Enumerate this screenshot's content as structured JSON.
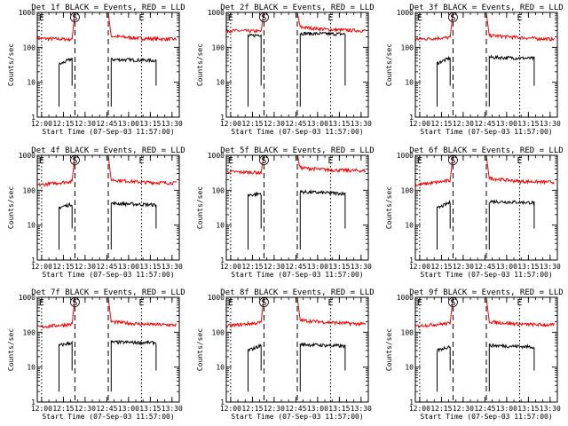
{
  "chart_data": [
    {
      "type": "line",
      "title": "Det 1f BLACK = Events, RED = LLD",
      "ylabel": "Counts/sec",
      "xlabel": "Start Time (07-Sep-03 11:57:00)",
      "xticks": [
        "12:00",
        "12:15",
        "12:30",
        "12:45",
        "13:00",
        "13:15",
        "13:30"
      ],
      "yticks": [
        "1",
        "10",
        "100",
        "1000"
      ],
      "ylim": [
        1,
        1000
      ],
      "xlim_min": [
        0,
        98
      ],
      "markers": [
        {
          "t": 3,
          "label": "E",
          "style": "dotted"
        },
        {
          "t": 26,
          "label": "S",
          "style": "dashed"
        },
        {
          "t": 49,
          "style": "dashed"
        },
        {
          "t": 72,
          "label": "E",
          "style": "dotted"
        }
      ],
      "series": [
        {
          "name": "LLD",
          "color": "#ff0000",
          "segments": [
            {
              "t": [
                0,
                24,
                26
              ],
              "y": [
                180,
                170,
                1000
              ]
            },
            {
              "t": [
                49,
                51,
                72,
                96
              ],
              "y": [
                1000,
                210,
                180,
                170
              ]
            }
          ]
        },
        {
          "name": "Events",
          "color": "#000000",
          "segments": [
            {
              "t": [
                15,
                24
              ],
              "y": [
                32,
                48
              ]
            },
            {
              "t": [
                51,
                82
              ],
              "y": [
                45,
                42
              ]
            }
          ]
        }
      ]
    },
    {
      "type": "line",
      "title": "Det 2f BLACK = Events, RED = LLD",
      "ylabel": "Counts/sec",
      "xlabel": "Start Time (07-Sep-03 11:57:00)",
      "xticks": [
        "12:00",
        "12:15",
        "12:30",
        "12:45",
        "13:00",
        "13:15",
        "13:30"
      ],
      "yticks": [
        "1",
        "10",
        "100",
        "1000"
      ],
      "ylim": [
        1,
        1000
      ],
      "xlim_min": [
        0,
        98
      ],
      "markers": [
        {
          "t": 3,
          "label": "E",
          "style": "dotted"
        },
        {
          "t": 26,
          "label": "S",
          "style": "dashed"
        },
        {
          "t": 49,
          "style": "dashed"
        },
        {
          "t": 72,
          "label": "E",
          "style": "dotted"
        }
      ],
      "series": [
        {
          "name": "LLD",
          "color": "#ff0000",
          "segments": [
            {
              "t": [
                0,
                24,
                26
              ],
              "y": [
                300,
                290,
                1000
              ]
            },
            {
              "t": [
                49,
                51,
                72,
                96
              ],
              "y": [
                1000,
                380,
                320,
                300
              ]
            }
          ]
        },
        {
          "name": "Events",
          "color": "#000000",
          "segments": [
            {
              "t": [
                15,
                24
              ],
              "y": [
                210,
                230
              ]
            },
            {
              "t": [
                51,
                82
              ],
              "y": [
                250,
                240
              ]
            }
          ]
        }
      ]
    },
    {
      "type": "line",
      "title": "Det 3f BLACK = Events, RED = LLD",
      "ylabel": "Counts/sec",
      "xlabel": "Start Time (07-Sep-03 11:57:00)",
      "xticks": [
        "12:00",
        "12:15",
        "12:30",
        "12:45",
        "13:00",
        "13:15",
        "13:30"
      ],
      "yticks": [
        "1",
        "10",
        "100",
        "1000"
      ],
      "ylim": [
        1,
        1000
      ],
      "xlim_min": [
        0,
        98
      ],
      "markers": [
        {
          "t": 3,
          "label": "E",
          "style": "dotted"
        },
        {
          "t": 26,
          "label": "S",
          "style": "dashed"
        },
        {
          "t": 49,
          "style": "dashed"
        },
        {
          "t": 72,
          "label": "E",
          "style": "dotted"
        }
      ],
      "series": [
        {
          "name": "LLD",
          "color": "#ff0000",
          "segments": [
            {
              "t": [
                0,
                24,
                26
              ],
              "y": [
                170,
                190,
                1000
              ]
            },
            {
              "t": [
                49,
                51,
                72,
                96
              ],
              "y": [
                1000,
                220,
                190,
                170
              ]
            }
          ]
        },
        {
          "name": "Events",
          "color": "#000000",
          "segments": [
            {
              "t": [
                15,
                24
              ],
              "y": [
                35,
                50
              ]
            },
            {
              "t": [
                51,
                82
              ],
              "y": [
                52,
                48
              ]
            }
          ]
        }
      ]
    },
    {
      "type": "line",
      "title": "Det 4f BLACK = Events, RED = LLD",
      "ylabel": "Counts/sec",
      "xlabel": "Start Time (07-Sep-03 11:57:00)",
      "xticks": [
        "12:00",
        "12:15",
        "12:30",
        "12:45",
        "13:00",
        "13:15",
        "13:30"
      ],
      "yticks": [
        "1",
        "10",
        "100",
        "1000"
      ],
      "ylim": [
        1,
        1000
      ],
      "xlim_min": [
        0,
        98
      ],
      "markers": [
        {
          "t": 3,
          "label": "E",
          "style": "dotted"
        },
        {
          "t": 26,
          "label": "S",
          "style": "dashed"
        },
        {
          "t": 49,
          "style": "dashed"
        },
        {
          "t": 72,
          "label": "E",
          "style": "dotted"
        }
      ],
      "series": [
        {
          "name": "LLD",
          "color": "#ff0000",
          "segments": [
            {
              "t": [
                0,
                24,
                26
              ],
              "y": [
                140,
                180,
                1000
              ]
            },
            {
              "t": [
                49,
                51,
                72,
                96
              ],
              "y": [
                1000,
                200,
                170,
                160
              ]
            }
          ]
        },
        {
          "name": "Events",
          "color": "#000000",
          "segments": [
            {
              "t": [
                15,
                24
              ],
              "y": [
                32,
                40
              ]
            },
            {
              "t": [
                51,
                82
              ],
              "y": [
                42,
                38
              ]
            }
          ]
        }
      ]
    },
    {
      "type": "line",
      "title": "Det 5f BLACK = Events, RED = LLD",
      "ylabel": "Counts/sec",
      "xlabel": "Start Time (07-Sep-03 11:57:00)",
      "xticks": [
        "12:00",
        "12:15",
        "12:30",
        "12:45",
        "13:00",
        "13:15",
        "13:30"
      ],
      "yticks": [
        "1",
        "10",
        "100",
        "1000"
      ],
      "ylim": [
        1,
        1000
      ],
      "xlim_min": [
        0,
        98
      ],
      "markers": [
        {
          "t": 3,
          "label": "E",
          "style": "dotted"
        },
        {
          "t": 26,
          "label": "S",
          "style": "dashed"
        },
        {
          "t": 49,
          "style": "dashed"
        },
        {
          "t": 72,
          "label": "E",
          "style": "dotted"
        }
      ],
      "series": [
        {
          "name": "LLD",
          "color": "#ff0000",
          "segments": [
            {
              "t": [
                0,
                24,
                26
              ],
              "y": [
                340,
                320,
                1000
              ]
            },
            {
              "t": [
                49,
                51,
                72,
                96
              ],
              "y": [
                1000,
                440,
                380,
                360
              ]
            }
          ]
        },
        {
          "name": "Events",
          "color": "#000000",
          "segments": [
            {
              "t": [
                15,
                24
              ],
              "y": [
                72,
                80
              ]
            },
            {
              "t": [
                51,
                82
              ],
              "y": [
                90,
                80
              ]
            }
          ]
        }
      ]
    },
    {
      "type": "line",
      "title": "Det 6f BLACK = Events, RED = LLD",
      "ylabel": "Counts/sec",
      "xlabel": "Start Time (07-Sep-03 11:57:00)",
      "xticks": [
        "12:00",
        "12:15",
        "12:30",
        "12:45",
        "13:00",
        "13:15",
        "13:30"
      ],
      "yticks": [
        "1",
        "10",
        "100",
        "1000"
      ],
      "ylim": [
        1,
        1000
      ],
      "xlim_min": [
        0,
        98
      ],
      "markers": [
        {
          "t": 3,
          "label": "E",
          "style": "dotted"
        },
        {
          "t": 26,
          "label": "S",
          "style": "dashed"
        },
        {
          "t": 49,
          "style": "dashed"
        },
        {
          "t": 72,
          "label": "E",
          "style": "dotted"
        }
      ],
      "series": [
        {
          "name": "LLD",
          "color": "#ff0000",
          "segments": [
            {
              "t": [
                0,
                24,
                26
              ],
              "y": [
                140,
                190,
                1000
              ]
            },
            {
              "t": [
                49,
                51,
                72,
                96
              ],
              "y": [
                1000,
                220,
                180,
                170
              ]
            }
          ]
        },
        {
          "name": "Events",
          "color": "#000000",
          "segments": [
            {
              "t": [
                15,
                24
              ],
              "y": [
                30,
                45
              ]
            },
            {
              "t": [
                51,
                82
              ],
              "y": [
                48,
                44
              ]
            }
          ]
        }
      ]
    },
    {
      "type": "line",
      "title": "Det 7f BLACK = Events, RED = LLD",
      "ylabel": "Counts/sec",
      "xlabel": "Start Time (07-Sep-03 11:57:00)",
      "xticks": [
        "12:00",
        "12:15",
        "12:30",
        "12:45",
        "13:00",
        "13:15",
        "13:30"
      ],
      "yticks": [
        "1",
        "10",
        "100",
        "1000"
      ],
      "ylim": [
        1,
        1000
      ],
      "xlim_min": [
        0,
        98
      ],
      "markers": [
        {
          "t": 3,
          "label": "E",
          "style": "dotted"
        },
        {
          "t": 26,
          "label": "S",
          "style": "dashed"
        },
        {
          "t": 49,
          "style": "dashed"
        },
        {
          "t": 72,
          "label": "E",
          "style": "dotted"
        }
      ],
      "series": [
        {
          "name": "LLD",
          "color": "#ff0000",
          "segments": [
            {
              "t": [
                0,
                24,
                26
              ],
              "y": [
                140,
                170,
                1000
              ]
            },
            {
              "t": [
                49,
                51,
                72,
                96
              ],
              "y": [
                1000,
                200,
                170,
                160
              ]
            }
          ]
        },
        {
          "name": "Events",
          "color": "#000000",
          "segments": [
            {
              "t": [
                15,
                24
              ],
              "y": [
                42,
                50
              ]
            },
            {
              "t": [
                51,
                82
              ],
              "y": [
                52,
                50
              ]
            }
          ]
        }
      ]
    },
    {
      "type": "line",
      "title": "Det 8f BLACK = Events, RED = LLD",
      "ylabel": "Counts/sec",
      "xlabel": "Start Time (07-Sep-03 11:57:00)",
      "xticks": [
        "12:00",
        "12:15",
        "12:30",
        "12:45",
        "13:00",
        "13:15",
        "13:30"
      ],
      "yticks": [
        "1",
        "10",
        "100",
        "1000"
      ],
      "ylim": [
        1,
        1000
      ],
      "xlim_min": [
        0,
        98
      ],
      "markers": [
        {
          "t": 3,
          "label": "E",
          "style": "dotted"
        },
        {
          "t": 26,
          "label": "S",
          "style": "dashed"
        },
        {
          "t": 49,
          "style": "dashed"
        },
        {
          "t": 72,
          "label": "E",
          "style": "dotted"
        }
      ],
      "series": [
        {
          "name": "LLD",
          "color": "#ff0000",
          "segments": [
            {
              "t": [
                0,
                24,
                26
              ],
              "y": [
                150,
                190,
                1000
              ]
            },
            {
              "t": [
                49,
                51,
                72,
                96
              ],
              "y": [
                1000,
                220,
                190,
                170
              ]
            }
          ]
        },
        {
          "name": "Events",
          "color": "#000000",
          "segments": [
            {
              "t": [
                15,
                24
              ],
              "y": [
                30,
                42
              ]
            },
            {
              "t": [
                51,
                82
              ],
              "y": [
                45,
                40
              ]
            }
          ]
        }
      ]
    },
    {
      "type": "line",
      "title": "Det 9f BLACK = Events, RED = LLD",
      "ylabel": "Counts/sec",
      "xlabel": "Start Time (07-Sep-03 11:57:00)",
      "xticks": [
        "12:00",
        "12:15",
        "12:30",
        "12:45",
        "13:00",
        "13:15",
        "13:30"
      ],
      "yticks": [
        "1",
        "10",
        "100",
        "1000"
      ],
      "ylim": [
        1,
        1000
      ],
      "xlim_min": [
        0,
        98
      ],
      "markers": [
        {
          "t": 3,
          "label": "E",
          "style": "dotted"
        },
        {
          "t": 26,
          "label": "S",
          "style": "dashed"
        },
        {
          "t": 49,
          "style": "dashed"
        },
        {
          "t": 72,
          "label": "E",
          "style": "dotted"
        }
      ],
      "series": [
        {
          "name": "LLD",
          "color": "#ff0000",
          "segments": [
            {
              "t": [
                0,
                24,
                26
              ],
              "y": [
                150,
                180,
                1000
              ]
            },
            {
              "t": [
                49,
                51,
                72,
                96
              ],
              "y": [
                1000,
                200,
                170,
                160
              ]
            }
          ]
        },
        {
          "name": "Events",
          "color": "#000000",
          "segments": [
            {
              "t": [
                15,
                24
              ],
              "y": [
                30,
                40
              ]
            },
            {
              "t": [
                51,
                82
              ],
              "y": [
                42,
                38
              ]
            }
          ]
        }
      ]
    }
  ]
}
